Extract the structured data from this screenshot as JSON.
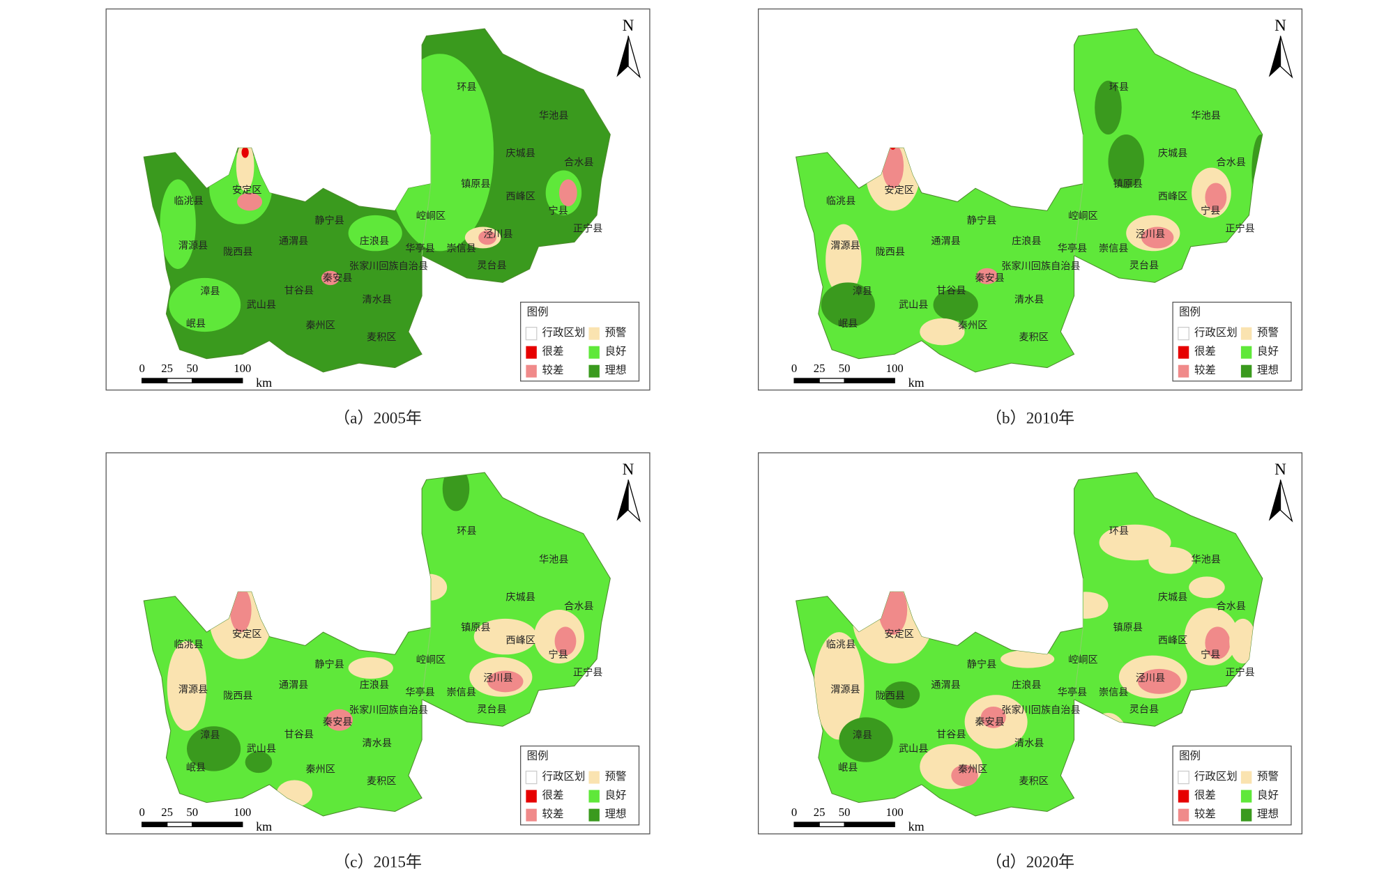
{
  "panels": [
    {
      "caption": "（a）2005年",
      "base_color": "#3a9a1e"
    },
    {
      "caption": "（b）2010年",
      "base_color": "#5fe83a"
    },
    {
      "caption": "（c）2015年",
      "base_color": "#5fe83a"
    },
    {
      "caption": "（d）2020年",
      "base_color": "#5fe83a"
    }
  ],
  "map": {
    "north": "N",
    "place_names": [
      "环县",
      "华池县",
      "庆城县",
      "合水县",
      "镇原县",
      "西峰区",
      "宁县",
      "崆峒区",
      "正宁县",
      "泾川县",
      "华亭县",
      "崇信县",
      "灵台县",
      "安定区",
      "临洮县",
      "静宁县",
      "庄浪县",
      "渭源县",
      "陇西县",
      "通渭县",
      "张家川回族自治县",
      "秦安县",
      "甘谷县",
      "漳县",
      "武山县",
      "清水县",
      "岷县",
      "秦州区",
      "麦积区"
    ],
    "legend": {
      "title": "图例",
      "items": [
        {
          "label": "行政区划",
          "color": "#ffffff"
        },
        {
          "label": "很差",
          "color": "#e60000"
        },
        {
          "label": "较差",
          "color": "#f08a8a"
        },
        {
          "label": "预警",
          "color": "#fae3b0"
        },
        {
          "label": "良好",
          "color": "#5fe83a"
        },
        {
          "label": "理想",
          "color": "#3a9a1e"
        }
      ]
    },
    "scale_bar": {
      "ticks": [
        0,
        25,
        50,
        100
      ],
      "unit": "km"
    }
  }
}
